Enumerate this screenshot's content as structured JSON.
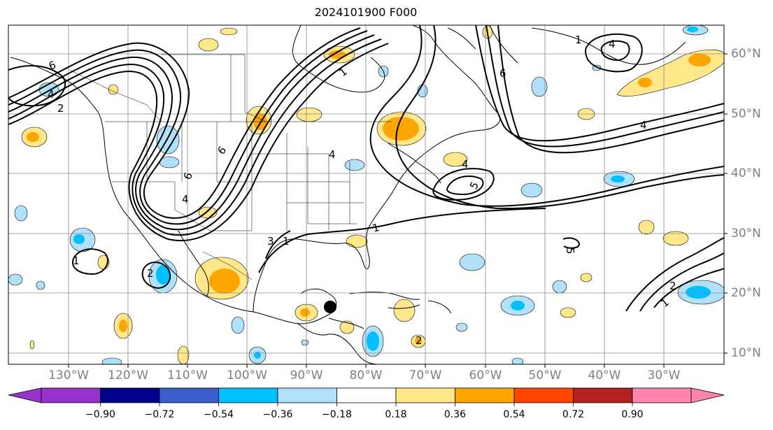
{
  "title": "2024101900 F000",
  "map": {
    "lon_labels": [
      "130°W",
      "120°W",
      "110°W",
      "100°W",
      "90°W",
      "80°W",
      "70°W",
      "60°W",
      "50°W",
      "40°W",
      "30°W"
    ],
    "lat_labels": [
      "60°N",
      "50°N",
      "40°N",
      "30°N",
      "20°N",
      "10°N"
    ],
    "contour_labels": [
      "6",
      "2",
      "4",
      "1",
      "6",
      "6",
      "4",
      "1",
      "4",
      "5",
      "6",
      "3",
      "1",
      "4",
      "2",
      "1",
      "1",
      "2",
      "1",
      "5",
      "4",
      "4",
      "2"
    ],
    "marker": "storm-center"
  },
  "colorbar": {
    "tick_labels": [
      "−0.90",
      "−0.72",
      "−0.54",
      "−0.36",
      "−0.18",
      "0.18",
      "0.36",
      "0.54",
      "0.72",
      "0.90"
    ],
    "colors": [
      "#9932cc",
      "#00008b",
      "#3a5fcd",
      "#00bfff",
      "#b0e0fa",
      "#ffffff",
      "#ffe78a",
      "#ffa500",
      "#ff4500",
      "#b22222",
      "#ff85ad"
    ]
  }
}
